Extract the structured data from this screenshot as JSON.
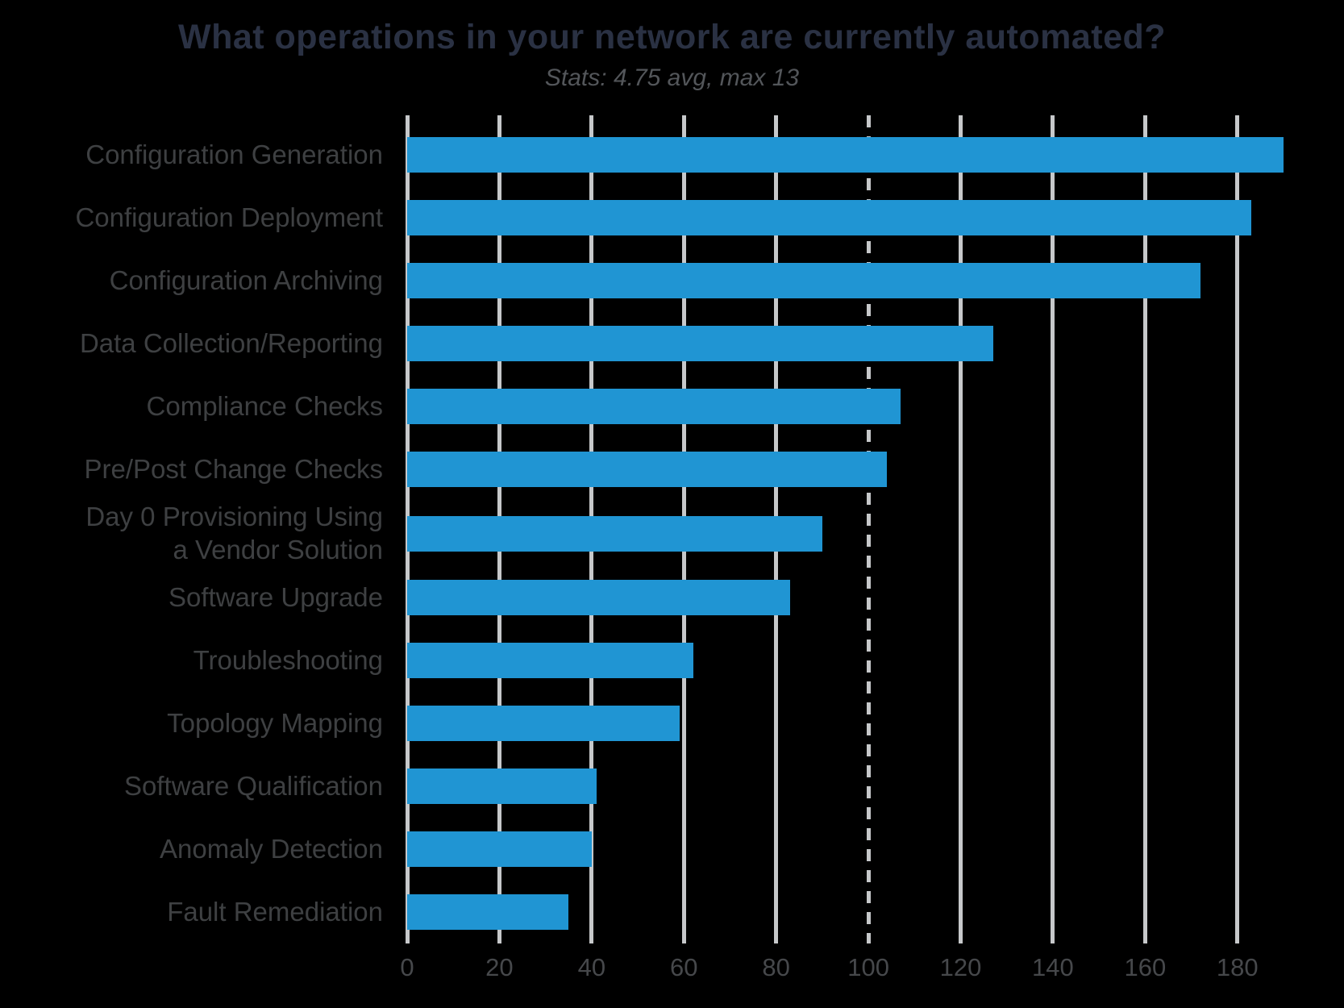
{
  "title": "What operations in your network are currently automated?",
  "subtitle": "Stats: 4.75 avg, max 13",
  "colors": {
    "background": "#000000",
    "bar": "#2095d3",
    "gridline": "#c6c8ca",
    "title_text": "#2a3143",
    "subtitle_text": "#53565a",
    "category_label": "#3e4042",
    "tick_label": "#46484b"
  },
  "chart_data": {
    "type": "bar",
    "orientation": "horizontal",
    "title": "What operations in your network are currently automated?",
    "subtitle": "Stats: 4.75 avg, max 13",
    "categories": [
      "Configuration Generation",
      "Configuration Deployment",
      "Configuration Archiving",
      "Data Collection/Reporting",
      "Compliance Checks",
      "Pre/Post Change Checks",
      "Day 0 Provisioning Using\na Vendor Solution",
      "Software Upgrade",
      "Troubleshooting",
      "Topology Mapping",
      "Software Qualification",
      "Anomaly Detection",
      "Fault Remediation"
    ],
    "values": [
      190,
      183,
      172,
      127,
      107,
      104,
      90,
      83,
      62,
      59,
      41,
      40,
      35
    ],
    "xlabel": "",
    "ylabel": "",
    "xticks": [
      0,
      20,
      40,
      60,
      80,
      100,
      120,
      140,
      160,
      180
    ],
    "xlim": [
      0,
      197
    ],
    "dashed_gridline_at": 100,
    "grid": "vertical gridlines on, dashed reference line at 100",
    "legend": "none",
    "bar_color": "#2095d3"
  }
}
